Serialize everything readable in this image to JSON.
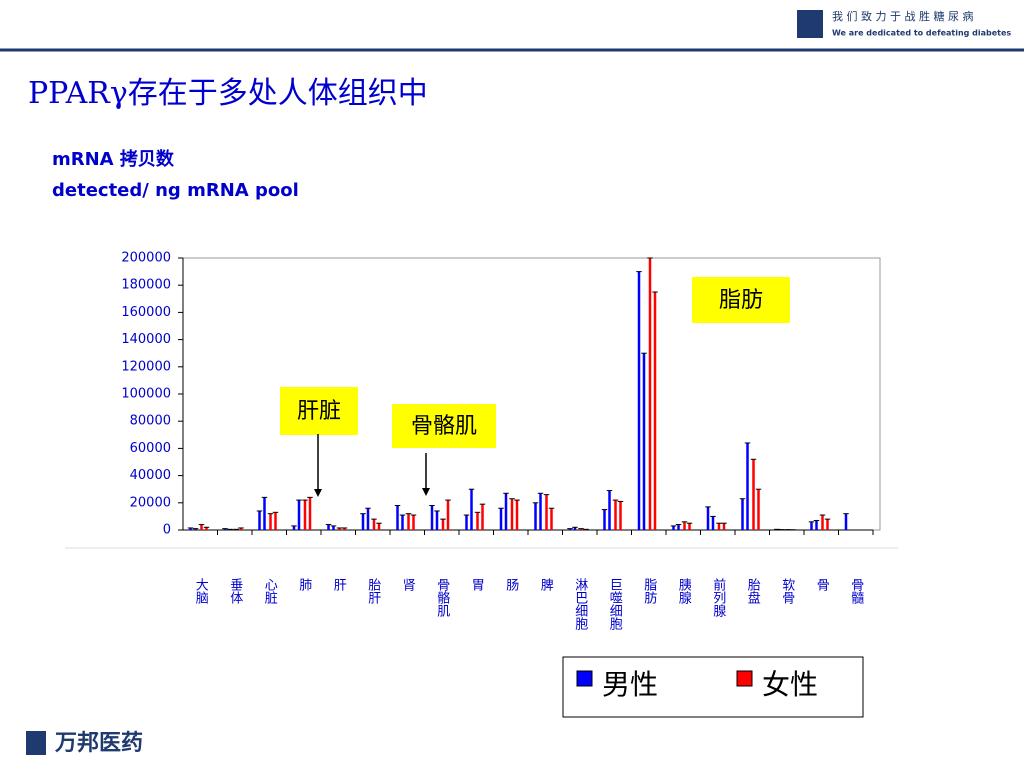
{
  "header": {
    "slogan": "我 们 致 力 于 战 胜 糖 尿 病",
    "slogan_en": "We are dedicated to defeating diabetes"
  },
  "footer": {
    "company": "万邦医药"
  },
  "chart_data": {
    "type": "bar",
    "title": "PPARγ存在于多处人体组织中",
    "y_label": [
      "mRNA 拷贝数",
      "detected/ ng mRNA  pool"
    ],
    "categories": [
      "大脑",
      "垂体",
      "心脏",
      "肺",
      "肝",
      "胎肝",
      "肾",
      "骨骼肌",
      "胃",
      "肠",
      "脾",
      "淋巴细胞",
      "巨噬细胞",
      "脂肪",
      "胰腺",
      "前列腺",
      "胎盘",
      "软骨",
      "骨",
      "骨髓"
    ],
    "series": [
      {
        "name": "男性",
        "color": "#0000ff",
        "values": [
          [
            1500,
            1000
          ],
          [
            1000,
            500
          ],
          [
            14000,
            24000
          ],
          [
            3000,
            22000
          ],
          [
            4000,
            3000
          ],
          [
            12000,
            16000
          ],
          [
            18000,
            11000
          ],
          [
            18000,
            14000
          ],
          [
            11000,
            30000
          ],
          [
            16000,
            27000
          ],
          [
            20000,
            27000
          ],
          [
            1000,
            2000
          ],
          [
            15000,
            29000
          ],
          [
            190000,
            130000
          ],
          [
            3000,
            4000
          ],
          [
            17000,
            10000
          ],
          [
            23000,
            64000
          ],
          [
            500,
            300
          ],
          [
            6000,
            7000
          ],
          [
            12000,
            null
          ]
        ]
      },
      {
        "name": "女性",
        "color": "#ff0000",
        "values": [
          [
            4000,
            2000
          ],
          [
            500,
            1500
          ],
          [
            12000,
            13000
          ],
          [
            22000,
            24000
          ],
          [
            1500,
            1500
          ],
          [
            8000,
            5000
          ],
          [
            12000,
            11000
          ],
          [
            8000,
            22000
          ],
          [
            13000,
            19000
          ],
          [
            23000,
            22000
          ],
          [
            26000,
            16000
          ],
          [
            1000,
            500
          ],
          [
            22000,
            21000
          ],
          [
            200000,
            175000
          ],
          [
            6000,
            5000
          ],
          [
            5000,
            5000
          ],
          [
            52000,
            30000
          ],
          [
            300,
            200
          ],
          [
            11000,
            8000
          ],
          [
            null,
            null
          ]
        ]
      }
    ],
    "ylim": [
      0,
      200000
    ],
    "yticks": [
      0,
      20000,
      40000,
      60000,
      80000,
      100000,
      120000,
      140000,
      160000,
      180000,
      200000
    ],
    "annotations": [
      "肝脏",
      "骨骼肌",
      "脂肪"
    ]
  }
}
